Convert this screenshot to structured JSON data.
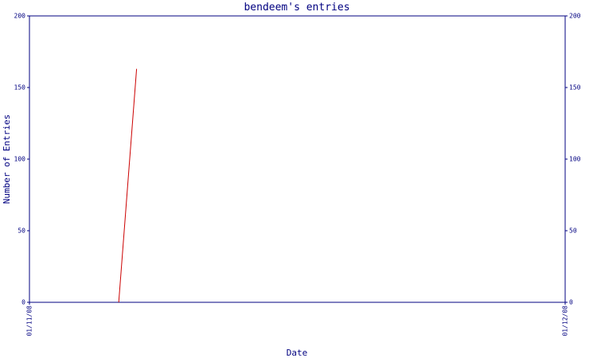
{
  "chart_data": {
    "type": "line",
    "title": "bendeem's entries",
    "x_label": "Date",
    "y_label": "Number of Entries",
    "x": [
      "06/11/08",
      "07/11/08"
    ],
    "series": [
      {
        "name": "entries",
        "color": "#cc0000",
        "values": [
          0,
          163
        ]
      }
    ],
    "xlim": [
      "01/11/08",
      "01/12/08"
    ],
    "xticks": [
      "01/11/08",
      "01/12/08"
    ],
    "ylim": [
      0,
      200
    ],
    "yticks": [
      0,
      50,
      100,
      150,
      200
    ],
    "y2lim": [
      0,
      200
    ],
    "y2ticks": [
      0,
      50,
      100,
      150,
      200
    ],
    "axis_color": "#000080"
  }
}
